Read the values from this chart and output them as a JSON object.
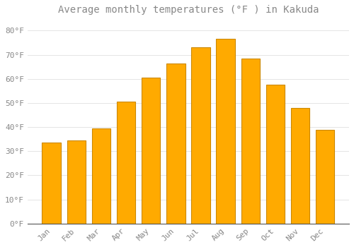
{
  "title": "Average monthly temperatures (°F ) in Kakuda",
  "months": [
    "Jan",
    "Feb",
    "Mar",
    "Apr",
    "May",
    "Jun",
    "Jul",
    "Aug",
    "Sep",
    "Oct",
    "Nov",
    "Dec"
  ],
  "values": [
    33.5,
    34.5,
    39.5,
    50.5,
    60.5,
    66.5,
    73.0,
    76.5,
    68.5,
    57.5,
    48.0,
    39.0
  ],
  "bar_color": "#FFAA00",
  "bar_edge_color": "#CC8800",
  "background_color": "#FFFFFF",
  "grid_color": "#E0E0E0",
  "text_color": "#888888",
  "ylim": [
    0,
    85
  ],
  "yticks": [
    0,
    10,
    20,
    30,
    40,
    50,
    60,
    70,
    80
  ],
  "title_fontsize": 10,
  "tick_fontsize": 8,
  "bar_width": 0.75
}
